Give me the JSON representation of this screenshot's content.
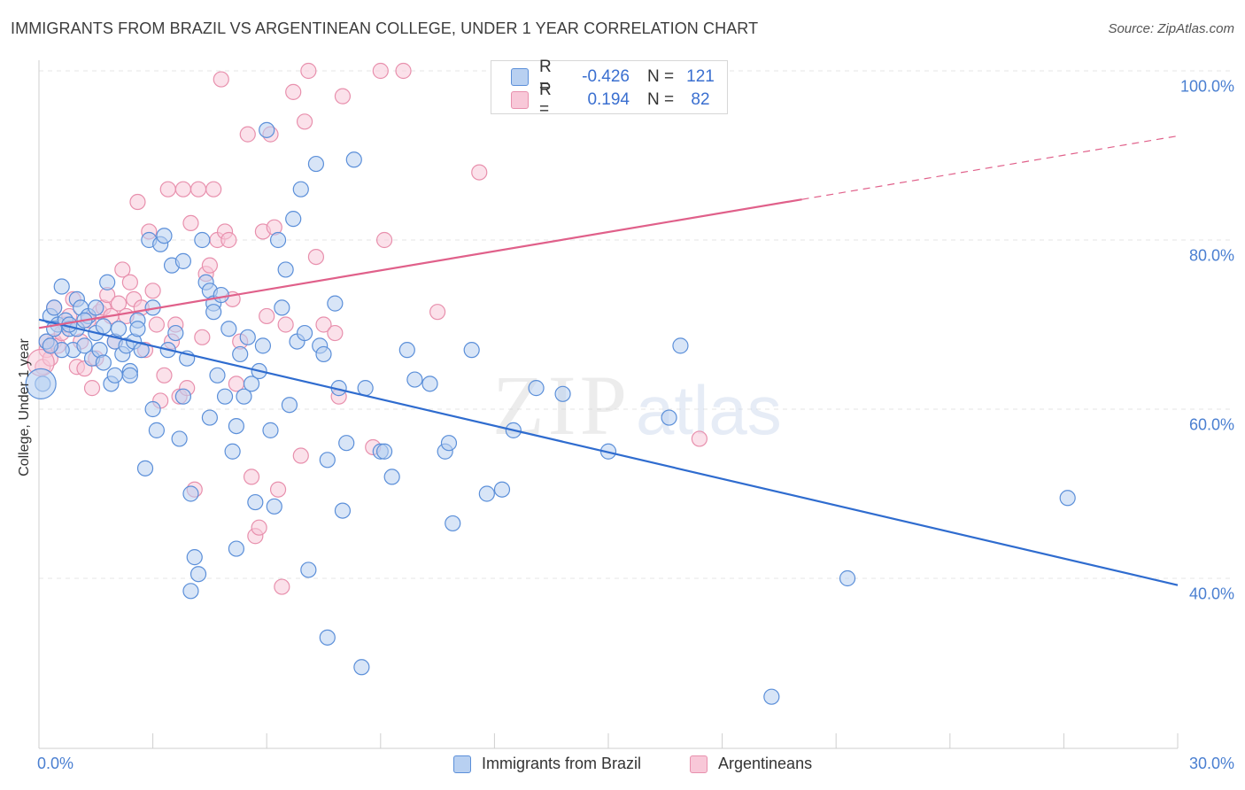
{
  "title": "IMMIGRANTS FROM BRAZIL VS ARGENTINEAN COLLEGE, UNDER 1 YEAR CORRELATION CHART",
  "source": "Source: ZipAtlas.com",
  "watermark": {
    "zip": "ZIP",
    "atlas": "atlas"
  },
  "colors": {
    "blue": "#5b8fd9",
    "blue_fill": "#b8d0f1",
    "blue_line": "#2f6ccf",
    "pink": "#e890ad",
    "pink_fill": "#f8c8d8",
    "pink_line": "#e0608a",
    "tick_text": "#4a7fd1",
    "grid": "#e6e6e6"
  },
  "stats": {
    "r_label": "R =",
    "n_label": "N =",
    "brazil": {
      "r": "-0.426",
      "n": "121"
    },
    "argentinean": {
      "r": "0.194",
      "n": "82"
    }
  },
  "legend": {
    "brazil": "Immigrants from Brazil",
    "argentinean": "Argentineans"
  },
  "chart_data": {
    "type": "scatter",
    "title": "IMMIGRANTS FROM BRAZIL VS ARGENTINEAN COLLEGE, UNDER 1 YEAR CORRELATION CHART",
    "xlabel": "",
    "ylabel": "College, Under 1 year",
    "xlim": [
      0,
      30
    ],
    "ylim": [
      20,
      102
    ],
    "x_tick_labels": [
      "0.0%",
      "30.0%"
    ],
    "y_ticks": [
      40,
      60,
      80,
      100
    ],
    "y_tick_labels": [
      "40.0%",
      "60.0%",
      "80.0%",
      "100.0%"
    ],
    "grid": true,
    "legend_position": "bottom-center",
    "series": [
      {
        "name": "Immigrants from Brazil",
        "color": "#5b8fd9",
        "r": -0.426,
        "n": 121,
        "trend": {
          "x": [
            0,
            30
          ],
          "y": [
            70.6,
            39.2
          ]
        },
        "points": [
          [
            0.1,
            63
          ],
          [
            0.2,
            68
          ],
          [
            0.3,
            71
          ],
          [
            0.4,
            72
          ],
          [
            0.5,
            70
          ],
          [
            0.6,
            74.5
          ],
          [
            0.7,
            70.5
          ],
          [
            0.8,
            69.5
          ],
          [
            0.9,
            67
          ],
          [
            1.0,
            73
          ],
          [
            1.1,
            72
          ],
          [
            1.2,
            67.5
          ],
          [
            1.3,
            71
          ],
          [
            1.4,
            66
          ],
          [
            1.5,
            69
          ],
          [
            1.6,
            67
          ],
          [
            1.7,
            65.5
          ],
          [
            1.8,
            75
          ],
          [
            1.9,
            63
          ],
          [
            2.0,
            68
          ],
          [
            2.1,
            69.5
          ],
          [
            2.2,
            66.5
          ],
          [
            2.3,
            67.5
          ],
          [
            2.4,
            64.5
          ],
          [
            2.5,
            68
          ],
          [
            2.6,
            70.5
          ],
          [
            2.7,
            67
          ],
          [
            2.8,
            53
          ],
          [
            2.9,
            80
          ],
          [
            3.0,
            72
          ],
          [
            3.1,
            57.5
          ],
          [
            3.2,
            79.5
          ],
          [
            3.3,
            80.5
          ],
          [
            3.5,
            77
          ],
          [
            3.6,
            69
          ],
          [
            3.7,
            56.5
          ],
          [
            3.8,
            77.5
          ],
          [
            3.9,
            66
          ],
          [
            4.0,
            50
          ],
          [
            4.1,
            42.5
          ],
          [
            4.2,
            40.5
          ],
          [
            4.3,
            80
          ],
          [
            4.4,
            75
          ],
          [
            4.5,
            74
          ],
          [
            4.6,
            72.5
          ],
          [
            4.7,
            64
          ],
          [
            4.8,
            73.5
          ],
          [
            4.9,
            61.5
          ],
          [
            5.0,
            69.5
          ],
          [
            5.1,
            55
          ],
          [
            5.2,
            43.5
          ],
          [
            5.3,
            66.5
          ],
          [
            5.4,
            61.5
          ],
          [
            5.5,
            68.5
          ],
          [
            5.6,
            63
          ],
          [
            5.7,
            49
          ],
          [
            5.8,
            64.5
          ],
          [
            5.9,
            67.5
          ],
          [
            6.0,
            93
          ],
          [
            6.1,
            57.5
          ],
          [
            6.2,
            48.5
          ],
          [
            6.3,
            80
          ],
          [
            6.4,
            72
          ],
          [
            6.5,
            76.5
          ],
          [
            6.6,
            60.5
          ],
          [
            6.7,
            82.5
          ],
          [
            6.8,
            68
          ],
          [
            6.9,
            86
          ],
          [
            7.0,
            69
          ],
          [
            7.1,
            41
          ],
          [
            7.3,
            89
          ],
          [
            7.4,
            67.5
          ],
          [
            7.5,
            66.5
          ],
          [
            7.6,
            54
          ],
          [
            7.8,
            72.5
          ],
          [
            7.9,
            62.5
          ],
          [
            8.0,
            48
          ],
          [
            8.1,
            56
          ],
          [
            8.3,
            89.5
          ],
          [
            8.6,
            62.5
          ],
          [
            9.0,
            55
          ],
          [
            9.1,
            55
          ],
          [
            9.3,
            52
          ],
          [
            9.7,
            67
          ],
          [
            9.9,
            63.5
          ],
          [
            10.3,
            63
          ],
          [
            10.7,
            55
          ],
          [
            10.8,
            56
          ],
          [
            10.9,
            46.5
          ],
          [
            11.4,
            67
          ],
          [
            11.8,
            50
          ],
          [
            12.2,
            50.5
          ],
          [
            12.5,
            57.5
          ],
          [
            13.1,
            62.5
          ],
          [
            13.8,
            61.8
          ],
          [
            15.0,
            55
          ],
          [
            16.6,
            59
          ],
          [
            16.9,
            67.5
          ],
          [
            19.3,
            26
          ],
          [
            21.3,
            40
          ],
          [
            27.1,
            49.5
          ],
          [
            4.0,
            38.5
          ],
          [
            7.6,
            33
          ],
          [
            8.5,
            29.5
          ],
          [
            0.6,
            67
          ],
          [
            1.0,
            69.5
          ],
          [
            1.5,
            72
          ],
          [
            2.0,
            64
          ],
          [
            2.4,
            64
          ],
          [
            3.0,
            60
          ],
          [
            3.8,
            61.5
          ],
          [
            4.5,
            59
          ],
          [
            5.2,
            58
          ],
          [
            0.3,
            67.5
          ],
          [
            1.2,
            70.5
          ],
          [
            0.4,
            69.5
          ],
          [
            0.8,
            70
          ],
          [
            1.7,
            69.8
          ],
          [
            2.6,
            69.5
          ],
          [
            3.4,
            67
          ],
          [
            4.6,
            71.5
          ]
        ]
      },
      {
        "name": "Argentineans",
        "color": "#e890ad",
        "r": 0.194,
        "n": 82,
        "trend": {
          "x": [
            0,
            20.1,
            30
          ],
          "y": [
            69.6,
            84.8,
            92.3
          ],
          "solid_until": 20.1
        },
        "points": [
          [
            0.1,
            65
          ],
          [
            0.2,
            67
          ],
          [
            0.3,
            66
          ],
          [
            0.4,
            68
          ],
          [
            0.5,
            67.5
          ],
          [
            0.6,
            69
          ],
          [
            0.7,
            70
          ],
          [
            0.8,
            71
          ],
          [
            0.9,
            73
          ],
          [
            1.0,
            65
          ],
          [
            1.1,
            68
          ],
          [
            1.2,
            64.8
          ],
          [
            1.3,
            70.5
          ],
          [
            1.4,
            62.5
          ],
          [
            1.5,
            66
          ],
          [
            1.6,
            71.5
          ],
          [
            1.7,
            72
          ],
          [
            1.8,
            73.5
          ],
          [
            1.9,
            71
          ],
          [
            2.0,
            68
          ],
          [
            2.1,
            72.5
          ],
          [
            2.2,
            76.5
          ],
          [
            2.3,
            71
          ],
          [
            2.4,
            75
          ],
          [
            2.5,
            73
          ],
          [
            2.6,
            84.5
          ],
          [
            2.7,
            72
          ],
          [
            2.8,
            67
          ],
          [
            2.9,
            81
          ],
          [
            3.0,
            74
          ],
          [
            3.1,
            70
          ],
          [
            3.2,
            61
          ],
          [
            3.3,
            64
          ],
          [
            3.4,
            86
          ],
          [
            3.5,
            68
          ],
          [
            3.6,
            70
          ],
          [
            3.7,
            61.5
          ],
          [
            3.8,
            86
          ],
          [
            3.9,
            62.5
          ],
          [
            4.0,
            82
          ],
          [
            4.1,
            50.5
          ],
          [
            4.2,
            86
          ],
          [
            4.3,
            68.5
          ],
          [
            4.4,
            76
          ],
          [
            4.5,
            77
          ],
          [
            4.6,
            86
          ],
          [
            4.7,
            80
          ],
          [
            4.8,
            99
          ],
          [
            4.9,
            81
          ],
          [
            5.0,
            80
          ],
          [
            5.1,
            73
          ],
          [
            5.2,
            63
          ],
          [
            5.3,
            68
          ],
          [
            5.5,
            92.5
          ],
          [
            5.6,
            52
          ],
          [
            5.7,
            45
          ],
          [
            5.8,
            46
          ],
          [
            5.9,
            81
          ],
          [
            6.0,
            71
          ],
          [
            6.1,
            92.5
          ],
          [
            6.2,
            81.5
          ],
          [
            6.3,
            50.5
          ],
          [
            6.4,
            39
          ],
          [
            6.5,
            70
          ],
          [
            6.7,
            97.5
          ],
          [
            6.9,
            54.5
          ],
          [
            7.0,
            94
          ],
          [
            7.1,
            100
          ],
          [
            7.3,
            78
          ],
          [
            7.5,
            70
          ],
          [
            7.8,
            69
          ],
          [
            7.9,
            61.5
          ],
          [
            8.0,
            97
          ],
          [
            8.8,
            55.5
          ],
          [
            9.0,
            100
          ],
          [
            9.1,
            80
          ],
          [
            9.6,
            100
          ],
          [
            10.5,
            71.5
          ],
          [
            11.6,
            88
          ],
          [
            17.4,
            56.5
          ],
          [
            0.2,
            68
          ],
          [
            0.4,
            72
          ]
        ]
      }
    ]
  }
}
